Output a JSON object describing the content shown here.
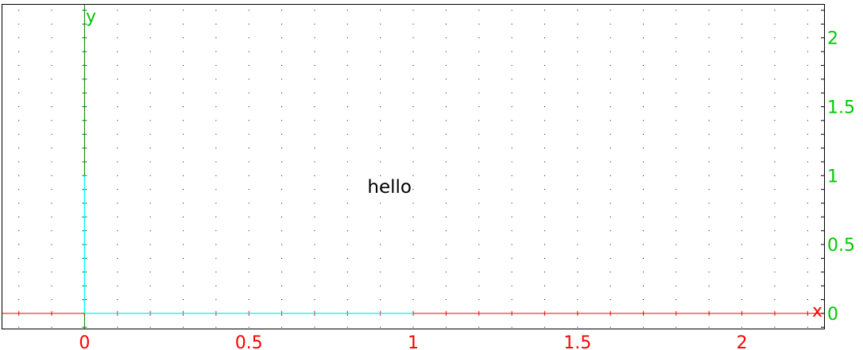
{
  "chart_data": {
    "type": "line",
    "title": "",
    "xlabel": "x",
    "ylabel": "y",
    "xlim": [
      -0.25,
      2.25
    ],
    "ylim": [
      -0.11,
      2.24
    ],
    "grid": true,
    "x_ticks": [
      "0",
      "0.5",
      "1",
      "1.5",
      "2"
    ],
    "y_ticks": [
      "0",
      "0.5",
      "1",
      "1.5",
      "2"
    ],
    "series": [
      {
        "color": "#00ffff",
        "segments": [
          {
            "x": [
              0,
              1
            ],
            "y": [
              0,
              0
            ]
          },
          {
            "x": [
              0,
              0
            ],
            "y": [
              0,
              1
            ]
          }
        ]
      }
    ],
    "annotations": [
      {
        "text": "hello",
        "x": 1,
        "y": 0.875
      }
    ],
    "colors": {
      "x_axis": "#ff0000",
      "y_axis": "#008000",
      "x_tick_text": "#ff0000",
      "y_tick_text": "#00c800",
      "frame": "#000000",
      "grid_dot": "#000000"
    }
  }
}
